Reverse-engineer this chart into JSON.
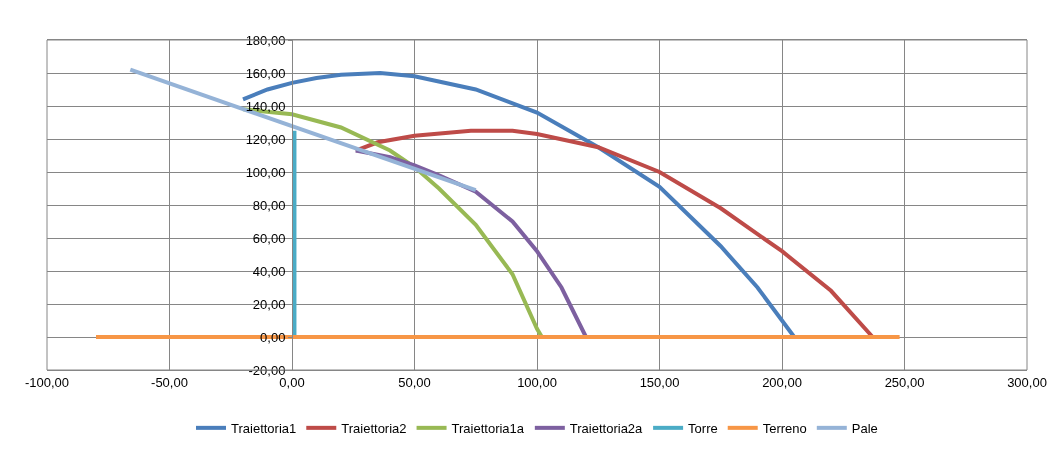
{
  "chart_data": {
    "type": "line",
    "xlim": [
      -100,
      300
    ],
    "ylim": [
      -20,
      180
    ],
    "xticks": [
      {
        "value": -100,
        "label": "-100,00"
      },
      {
        "value": -50,
        "label": "-50,00"
      },
      {
        "value": 0,
        "label": "0,00"
      },
      {
        "value": 50,
        "label": "50,00"
      },
      {
        "value": 100,
        "label": "100,00"
      },
      {
        "value": 150,
        "label": "150,00"
      },
      {
        "value": 200,
        "label": "200,00"
      },
      {
        "value": 250,
        "label": "250,00"
      },
      {
        "value": 300,
        "label": "300,00"
      }
    ],
    "yticks": [
      {
        "value": -20,
        "label": "-20,00"
      },
      {
        "value": 0,
        "label": "0,00"
      },
      {
        "value": 20,
        "label": "20,00"
      },
      {
        "value": 40,
        "label": "40,00"
      },
      {
        "value": 60,
        "label": "60,00"
      },
      {
        "value": 80,
        "label": "80,00"
      },
      {
        "value": 100,
        "label": "100,00"
      },
      {
        "value": 120,
        "label": "120,00"
      },
      {
        "value": 140,
        "label": "140,00"
      },
      {
        "value": 160,
        "label": "160,00"
      },
      {
        "value": 180,
        "label": "180,00"
      }
    ],
    "grid": true,
    "legend": "bottom",
    "marker": "none",
    "line_style": "solid",
    "series": [
      {
        "name": "Traiettoria1",
        "color": "#4a7ebb",
        "x": [
          -20,
          -10,
          0,
          10,
          20,
          36,
          50,
          75,
          100,
          125,
          150,
          175,
          190,
          205
        ],
        "values": [
          144,
          150,
          154,
          157,
          159,
          160,
          158,
          150,
          136,
          115,
          91,
          55,
          30,
          0
        ]
      },
      {
        "name": "Traiettoria2",
        "color": "#be4b48",
        "x": [
          26,
          35,
          50,
          73,
          90,
          100,
          125,
          150,
          175,
          200,
          220,
          237
        ],
        "values": [
          113,
          118,
          122,
          125,
          125,
          123,
          115,
          100,
          78,
          52,
          28,
          0
        ]
      },
      {
        "name": "Traiettoria1a",
        "color": "#98b954",
        "x": [
          -20,
          0,
          20,
          40,
          50,
          60,
          75,
          90,
          100,
          102
        ],
        "values": [
          138,
          135,
          127,
          113,
          103,
          90,
          68,
          38,
          5,
          0
        ]
      },
      {
        "name": "Traiettoria2a",
        "color": "#7d60a0",
        "x": [
          26,
          40,
          50,
          60,
          75,
          90,
          100,
          110,
          120
        ],
        "values": [
          113,
          109,
          104,
          98,
          88,
          70,
          52,
          30,
          0
        ]
      },
      {
        "name": "Torre",
        "color": "#4bacc6",
        "x": [
          1,
          1
        ],
        "values": [
          0,
          125
        ]
      },
      {
        "name": "Terreno",
        "color": "#f79646",
        "x": [
          -80,
          248
        ],
        "values": [
          0,
          0
        ]
      },
      {
        "name": "Pale",
        "color": "#95b3d7",
        "x": [
          -66,
          75
        ],
        "values": [
          162,
          89
        ]
      }
    ]
  }
}
